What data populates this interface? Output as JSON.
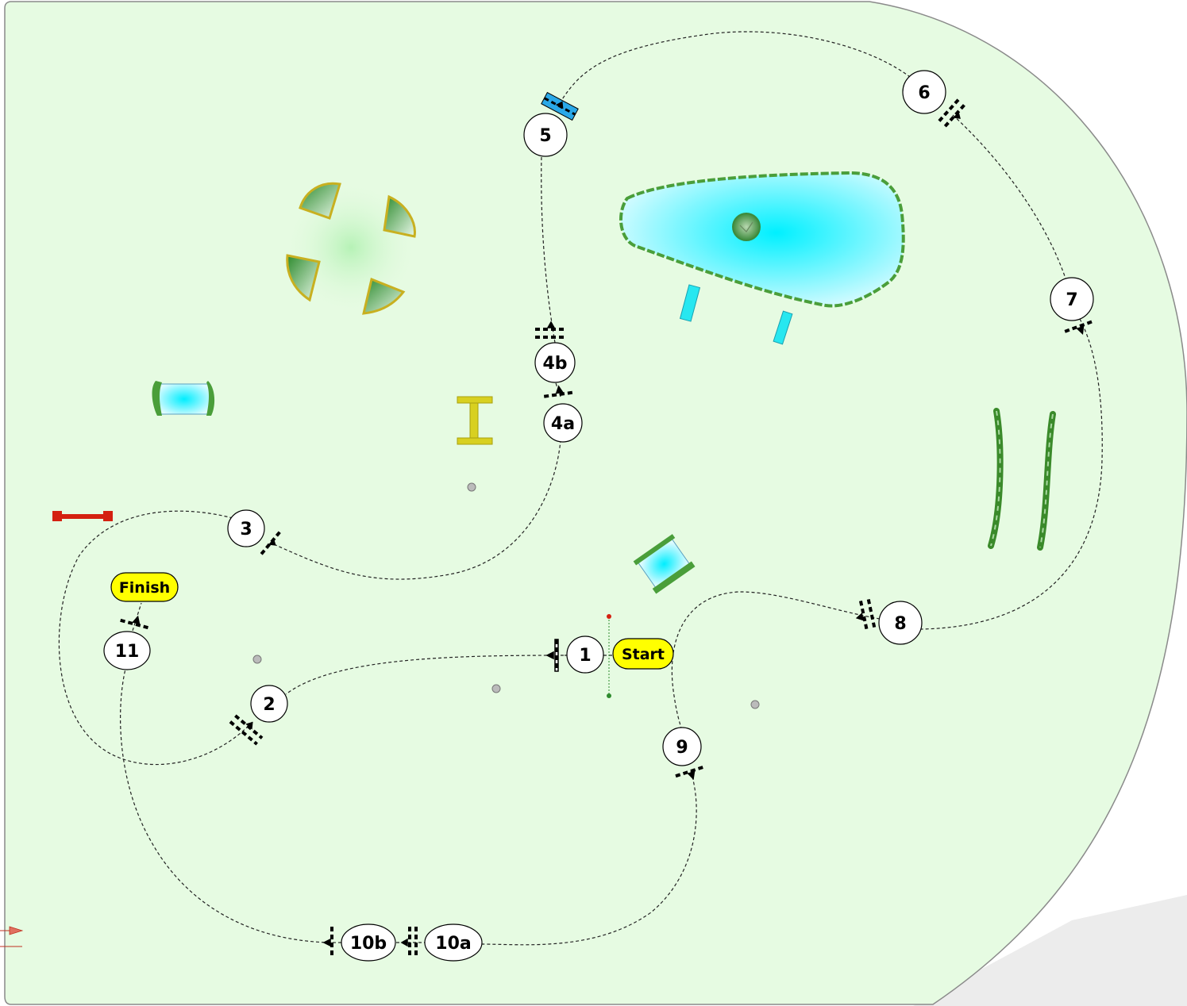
{
  "course": {
    "start_label": "Start",
    "finish_label": "Finish",
    "markers": [
      {
        "id": "1",
        "label": "1"
      },
      {
        "id": "2",
        "label": "2"
      },
      {
        "id": "3",
        "label": "3"
      },
      {
        "id": "4a",
        "label": "4a"
      },
      {
        "id": "4b",
        "label": "4b"
      },
      {
        "id": "5",
        "label": "5"
      },
      {
        "id": "6",
        "label": "6"
      },
      {
        "id": "7",
        "label": "7"
      },
      {
        "id": "8",
        "label": "8"
      },
      {
        "id": "9",
        "label": "9"
      },
      {
        "id": "10a",
        "label": "10a"
      },
      {
        "id": "10b",
        "label": "10b"
      },
      {
        "id": "11",
        "label": "11"
      }
    ]
  },
  "colors": {
    "arena_fill": "#e6fbe2",
    "arena_border": "#8a8a8a",
    "marker_fill": "#ffffff",
    "pill_fill": "#ffff00",
    "water": "#27e7f0",
    "hedge": "#3a8a2a",
    "red_pole": "#d42010",
    "liverpool": "#2aa8e8"
  }
}
